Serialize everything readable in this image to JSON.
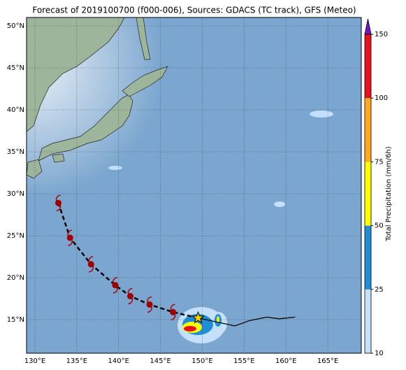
{
  "title": "Forecast of 2019100700 (f000-006), Sources: GDACS (TC track), GFS (Meteo)",
  "map": {
    "lonlim": [
      129,
      169
    ],
    "latlim": [
      11,
      51
    ],
    "lon_ticks": [
      {
        "value": 130,
        "label": "130°E"
      },
      {
        "value": 135,
        "label": "135°E"
      },
      {
        "value": 140,
        "label": "140°E"
      },
      {
        "value": 145,
        "label": "145°E"
      },
      {
        "value": 150,
        "label": "150°E"
      },
      {
        "value": 155,
        "label": "155°E"
      },
      {
        "value": 160,
        "label": "160°E"
      },
      {
        "value": 165,
        "label": "165°E"
      }
    ],
    "lat_ticks": [
      {
        "value": 15,
        "label": "15°N"
      },
      {
        "value": 20,
        "label": "20°N"
      },
      {
        "value": 25,
        "label": "25°N"
      },
      {
        "value": 30,
        "label": "30°N"
      },
      {
        "value": 35,
        "label": "35°N"
      },
      {
        "value": 40,
        "label": "40°N"
      },
      {
        "value": 45,
        "label": "45°N"
      },
      {
        "value": 50,
        "label": "50°N"
      }
    ],
    "forecast_track": {
      "lon": [
        149.5,
        146.5,
        143.7,
        141.4,
        139.6,
        136.7,
        134.2,
        132.8
      ],
      "lat": [
        15.2,
        15.9,
        16.8,
        17.8,
        19.1,
        21.6,
        24.75,
        28.9
      ]
    },
    "past_track": {
      "lon": [
        149.5,
        153.9,
        155.7,
        157.7,
        159.2,
        161.1
      ],
      "lat": [
        15.2,
        14.25,
        14.9,
        15.3,
        15.1,
        15.3
      ]
    },
    "current_position": {
      "lon": 149.5,
      "lat": 15.2
    }
  },
  "colorbar": {
    "label": "Total Precipitation (mm/6h)",
    "ticks": [
      10,
      25,
      50,
      75,
      100,
      150
    ],
    "colors": [
      "#c4e0fb",
      "#1e8ed6",
      "#ffff00",
      "#ffa820",
      "#e8101c"
    ],
    "extend_color": "#7a10c8"
  }
}
